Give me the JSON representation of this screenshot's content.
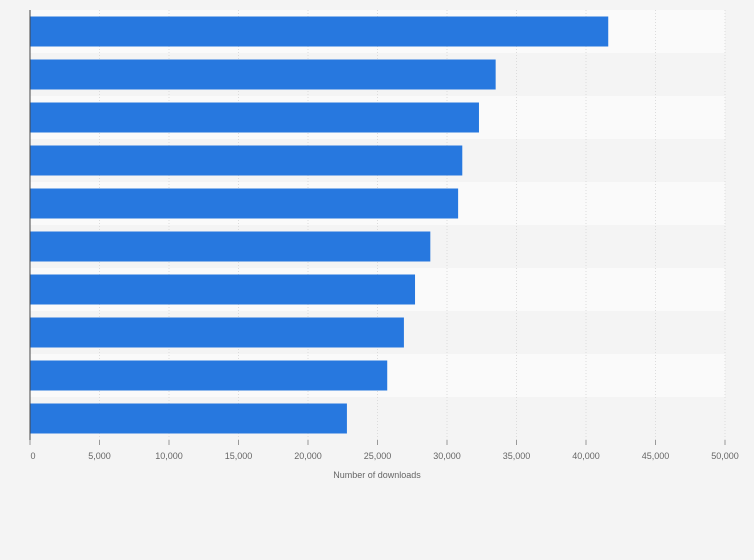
{
  "colors": {
    "bar": "#2778df",
    "background": "#f4f4f4",
    "band_light": "#fafafa",
    "band_dark": "#f4f4f4",
    "grid": "#dcdcdc",
    "axis": "#444444",
    "tick_text": "#666666"
  },
  "chart_data": {
    "type": "bar",
    "orientation": "horizontal",
    "title": "",
    "xlabel": "Number of downloads",
    "ylabel": "",
    "categories": [
      "",
      "",
      "",
      "",
      "",
      "",
      "",
      "",
      "",
      ""
    ],
    "values": [
      41600,
      33500,
      32300,
      31100,
      30800,
      28800,
      27700,
      26900,
      25700,
      22800
    ],
    "xlim": [
      0,
      50000
    ],
    "ticks": [
      0,
      5000,
      10000,
      15000,
      20000,
      25000,
      30000,
      35000,
      40000,
      45000,
      50000
    ],
    "tick_labels": [
      "0",
      "5,000",
      "10,000",
      "15,000",
      "20,000",
      "25,000",
      "30,000",
      "35,000",
      "40,000",
      "45,000",
      "50,000"
    ],
    "grid": true,
    "legend": "none"
  }
}
